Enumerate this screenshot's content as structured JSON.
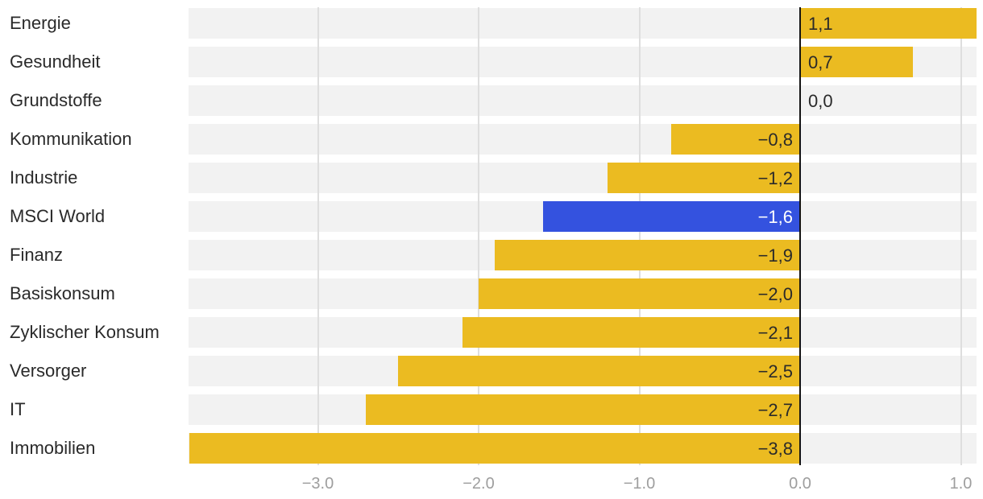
{
  "chart_data": {
    "type": "bar",
    "orientation": "horizontal",
    "title": "",
    "xlabel": "",
    "ylabel": "",
    "legend": false,
    "grid": true,
    "xlim": [
      -3.8,
      1.1
    ],
    "x_ticks": [
      -3,
      -2,
      -1,
      0,
      1
    ],
    "x_tick_labels": [
      "−3.0",
      "−2.0",
      "−1.0",
      "0.0",
      "1.0"
    ],
    "categories": [
      "Energie",
      "Gesundheit",
      "Grundstoffe",
      "Kommunikation",
      "Industrie",
      "MSCI World",
      "Finanz",
      "Basiskonsum",
      "Zyklischer Konsum",
      "Versorger",
      "IT",
      "Immobilien"
    ],
    "values": [
      1.1,
      0.7,
      0.0,
      -0.8,
      -1.2,
      -1.6,
      -1.9,
      -2.0,
      -2.1,
      -2.5,
      -2.7,
      -3.8
    ],
    "value_labels": [
      "1,1",
      "0,7",
      "0,0",
      "−0,8",
      "−1,2",
      "−1,6",
      "−1,9",
      "−2,0",
      "−2,1",
      "−2,5",
      "−2,7",
      "−3,8"
    ],
    "highlight_category": "MSCI World",
    "highlight_index": 5,
    "colors": {
      "bar": "#EBBB21",
      "highlight_bar": "#3452DF",
      "track": "#F2F2F2",
      "gridline": "#DEDEDE",
      "zero_line": "#141414",
      "category_text": "#2A2A2A",
      "value_text": "#2A2A2A",
      "value_text_highlight": "#FFFFFF",
      "tick_text": "#9E9E9E"
    }
  }
}
